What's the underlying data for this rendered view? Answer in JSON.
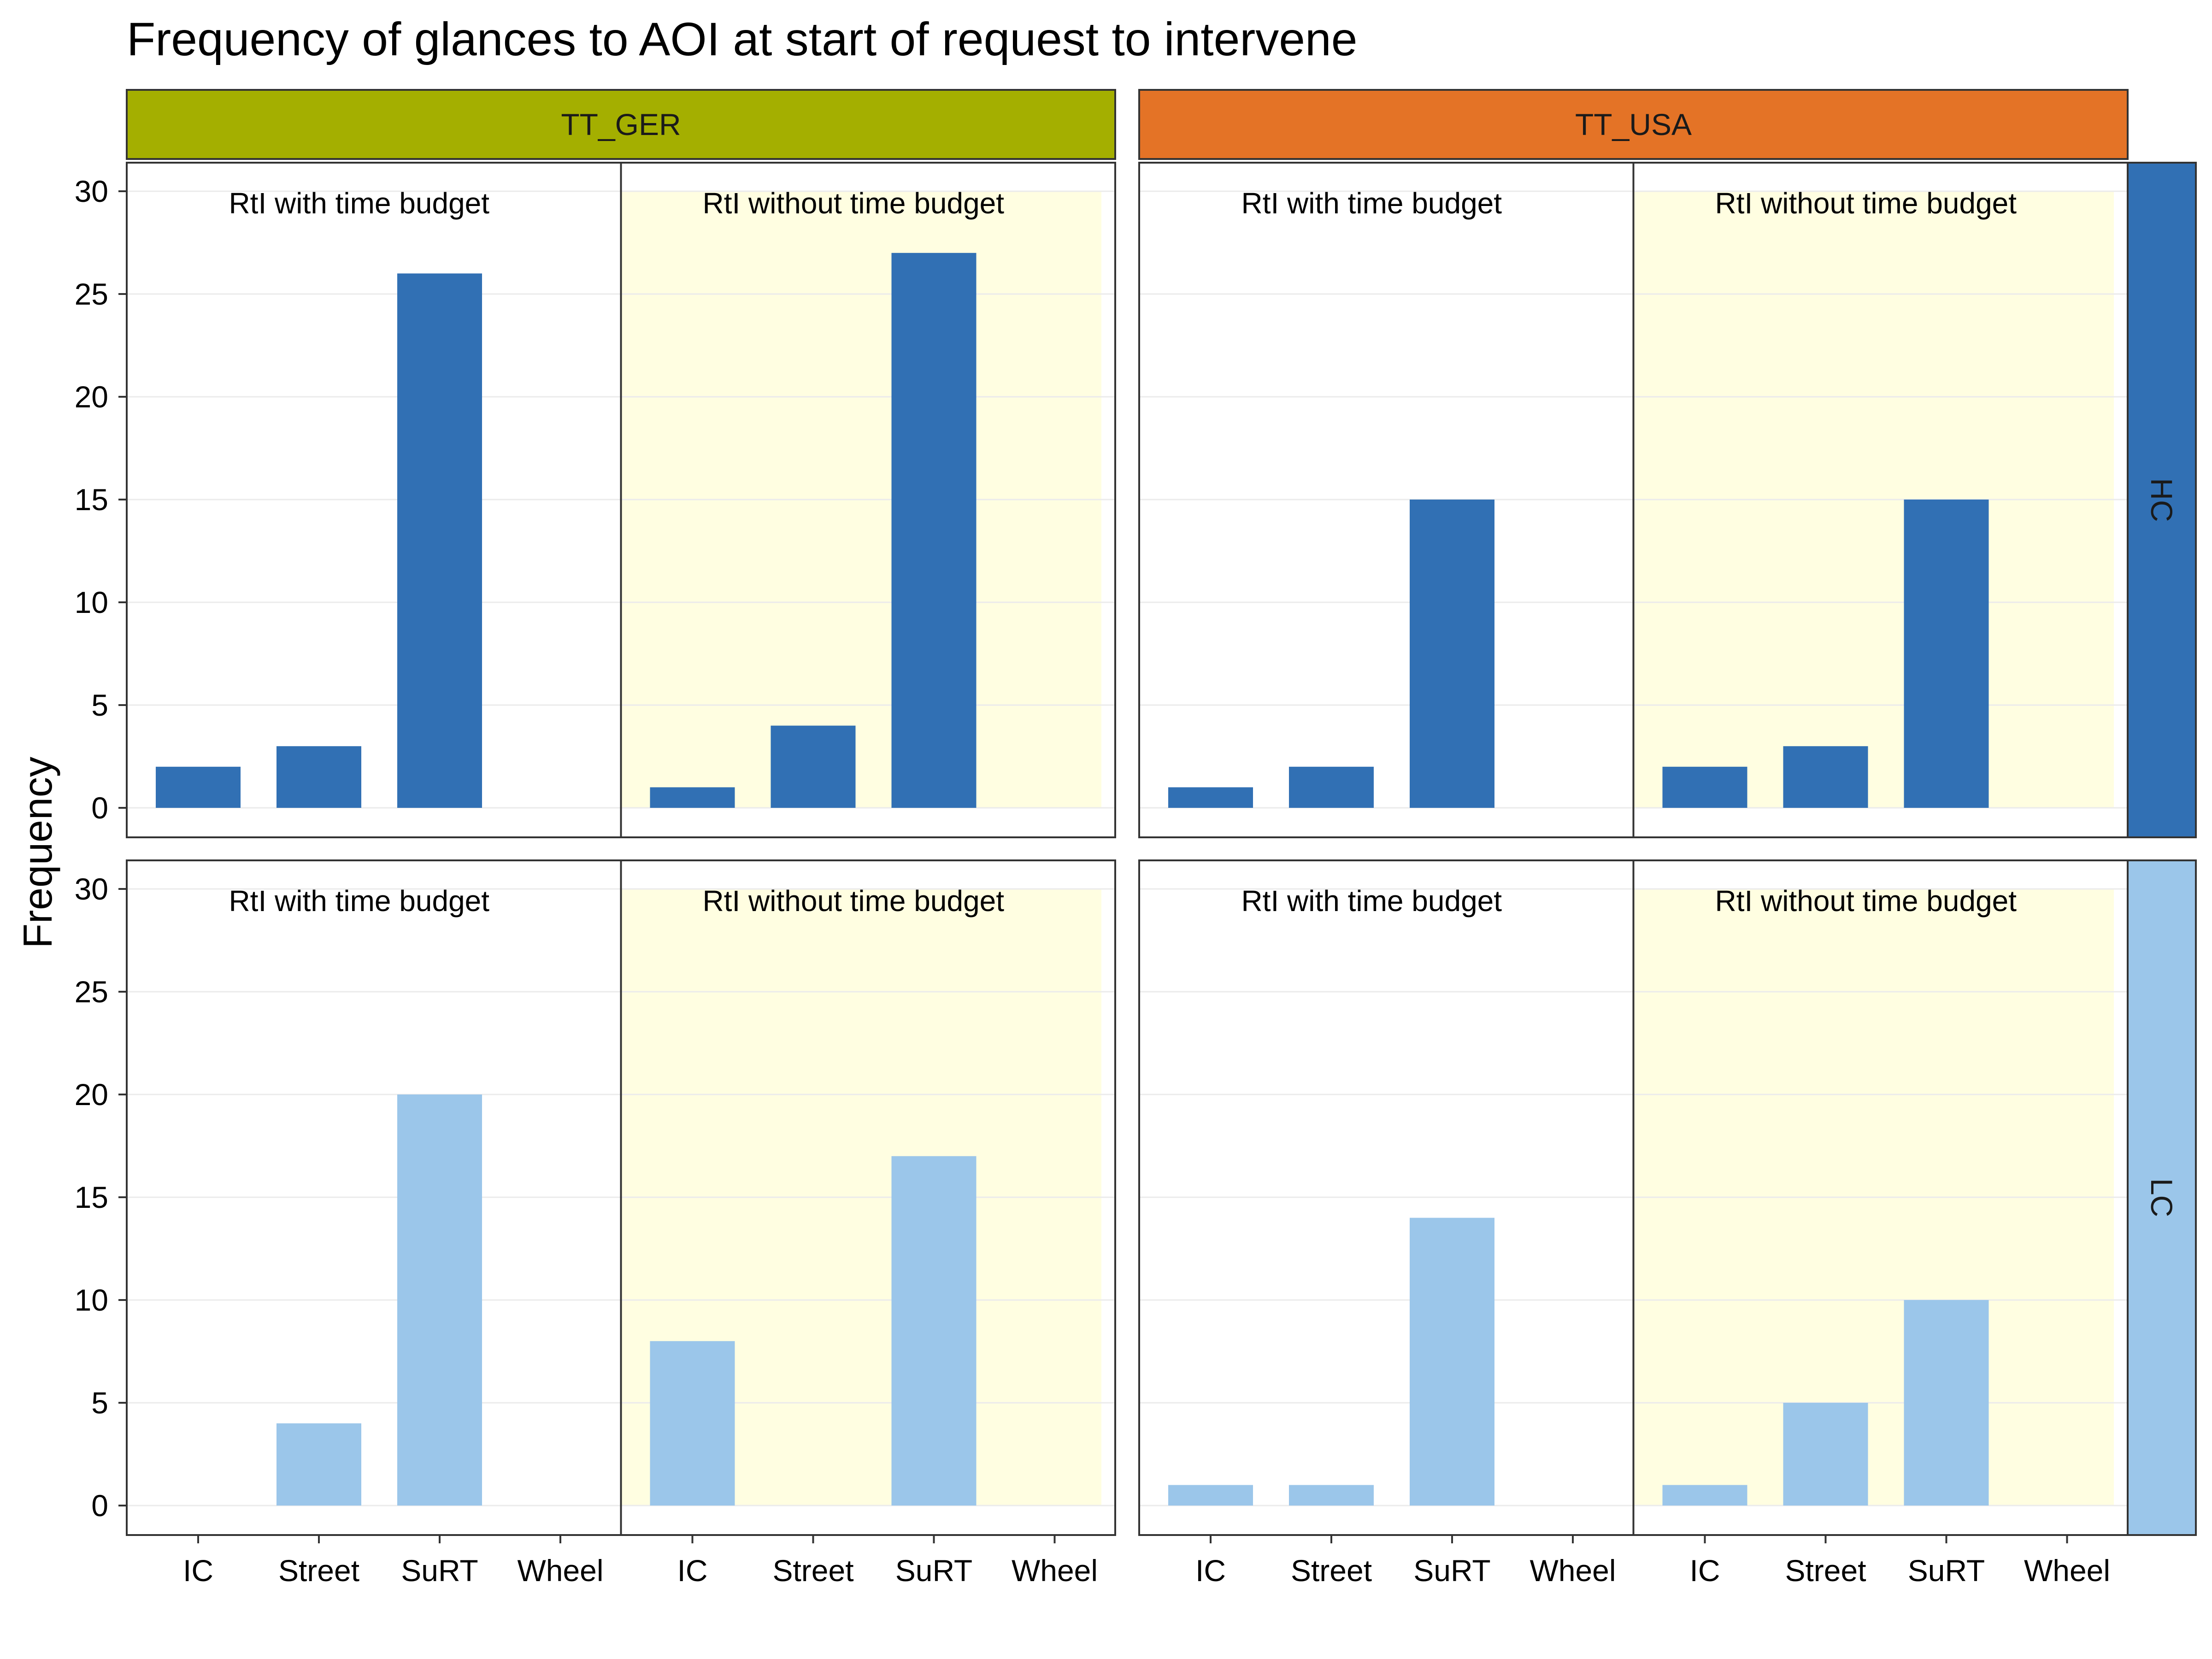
{
  "colors": {
    "ger_strip": "#A4AF00",
    "usa_strip": "#E47326",
    "hc": "#3170B4",
    "lc": "#9BC6EA",
    "without_bg": "#FFFEE1",
    "grid": "#EBEBEB",
    "border": "#333333"
  },
  "chart_data": {
    "type": "bar",
    "title": "Frequency of glances to AOI at start of request to intervene",
    "xlabel": "",
    "ylabel": "Frequency",
    "ylim": [
      0,
      30
    ],
    "yticks": [
      0,
      5,
      10,
      15,
      20,
      25,
      30
    ],
    "categories": [
      "IC",
      "Street",
      "SuRT",
      "Wheel"
    ],
    "column_facets": [
      "TT_GER",
      "TT_USA"
    ],
    "row_facets": [
      "HC",
      "LC"
    ],
    "conditions": [
      "RtI with time budget",
      "RtI without time budget"
    ],
    "grid": true,
    "legend": "none",
    "panels": [
      {
        "column": "TT_GER",
        "row": "HC",
        "condition": "RtI with time budget",
        "values": [
          2,
          3,
          26,
          0
        ]
      },
      {
        "column": "TT_GER",
        "row": "HC",
        "condition": "RtI without time budget",
        "values": [
          1,
          4,
          27,
          0
        ]
      },
      {
        "column": "TT_USA",
        "row": "HC",
        "condition": "RtI with time budget",
        "values": [
          1,
          2,
          15,
          0
        ]
      },
      {
        "column": "TT_USA",
        "row": "HC",
        "condition": "RtI without time budget",
        "values": [
          2,
          3,
          15,
          0
        ]
      },
      {
        "column": "TT_GER",
        "row": "LC",
        "condition": "RtI with time budget",
        "values": [
          0,
          4,
          20,
          0
        ]
      },
      {
        "column": "TT_GER",
        "row": "LC",
        "condition": "RtI without time budget",
        "values": [
          8,
          0,
          17,
          0
        ]
      },
      {
        "column": "TT_USA",
        "row": "LC",
        "condition": "RtI with time budget",
        "values": [
          1,
          1,
          14,
          0
        ]
      },
      {
        "column": "TT_USA",
        "row": "LC",
        "condition": "RtI without time budget",
        "values": [
          1,
          5,
          10,
          0
        ]
      }
    ]
  }
}
